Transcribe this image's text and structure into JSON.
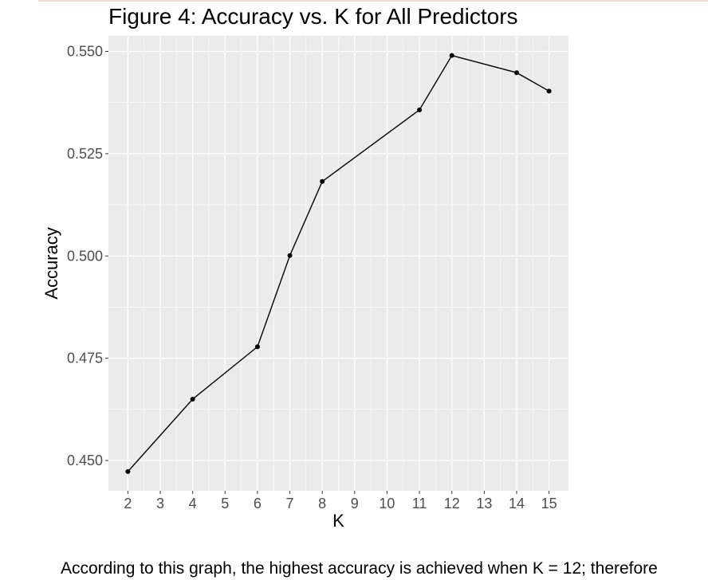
{
  "chart_data": {
    "type": "line",
    "title": "Figure 4: Accuracy vs. K for All Predictors",
    "xlabel": "K",
    "ylabel": "Accuracy",
    "x": [
      2,
      4,
      6,
      7,
      8,
      11,
      12,
      14,
      15
    ],
    "y": [
      0.4473,
      0.465,
      0.4778,
      0.5001,
      0.5182,
      0.5357,
      0.549,
      0.5448,
      0.5403
    ],
    "xlim": [
      1.4,
      15.6
    ],
    "ylim": [
      0.4426,
      0.5538
    ],
    "x_ticks": [
      2,
      3,
      4,
      5,
      6,
      7,
      8,
      9,
      10,
      11,
      12,
      13,
      14,
      15
    ],
    "y_ticks": [
      0.45,
      0.475,
      0.5,
      0.525,
      0.55
    ],
    "y_tick_labels": [
      "0.450",
      "0.475",
      "0.500",
      "0.525",
      "0.550"
    ],
    "grid": true,
    "colors": {
      "panel": "#ebebeb",
      "grid": "#ffffff",
      "line": "#000000",
      "points": "#000000"
    }
  },
  "caption": "According to this graph, the highest accuracy is achieved when K = 12; therefore"
}
